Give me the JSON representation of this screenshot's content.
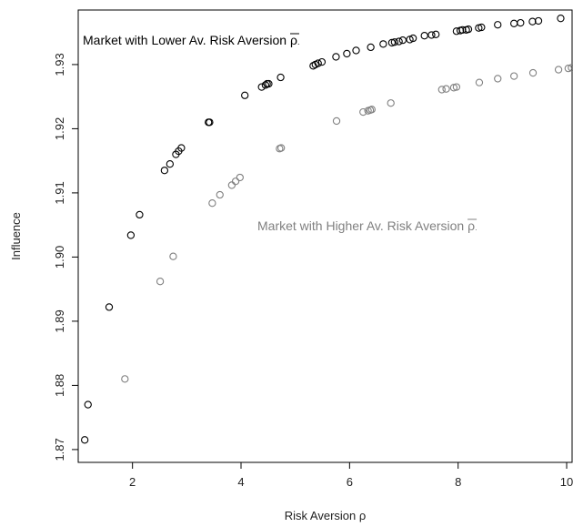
{
  "chart_data": {
    "type": "scatter",
    "xlabel": "Risk Aversion ρ",
    "ylabel": "Influence",
    "xlim": [
      1.0,
      10.1
    ],
    "ylim": [
      1.868,
      1.9385
    ],
    "x_ticks": [
      2,
      4,
      6,
      8,
      10
    ],
    "y_ticks": [
      1.87,
      1.88,
      1.89,
      1.9,
      1.91,
      1.92,
      1.93
    ],
    "y_tick_labels": [
      "1.87",
      "1.88",
      "1.89",
      "1.90",
      "1.91",
      "1.92",
      "1.93"
    ],
    "grid": false,
    "legend": "none",
    "annotations": [
      {
        "text": "Market with Lower Av. Risk Aversion",
        "symbol": "ρ",
        "color": "#000000"
      },
      {
        "text": "Market with Higher Av. Risk Aversion",
        "symbol": "ρ",
        "color": "#808080"
      }
    ],
    "series": [
      {
        "color": "#000000",
        "x": [
          1.12,
          1.18,
          1.57,
          1.97,
          2.13,
          2.59,
          2.69,
          2.8,
          2.85,
          2.9,
          3.4,
          3.42,
          4.07,
          4.38,
          4.45,
          4.48,
          4.51,
          4.73,
          5.33,
          5.37,
          5.42,
          5.49,
          5.75,
          5.95,
          6.12,
          6.39,
          6.62,
          6.78,
          6.83,
          6.91,
          6.98,
          7.11,
          7.17,
          7.38,
          7.51,
          7.59,
          7.97,
          8.04,
          8.08,
          8.15,
          8.19,
          8.38,
          8.43,
          8.73,
          9.03,
          9.15,
          9.37,
          9.48,
          9.89
        ],
        "y": [
          1.8715,
          1.877,
          1.8922,
          1.9034,
          1.9066,
          1.9135,
          1.9145,
          1.916,
          1.9165,
          1.917,
          1.921,
          1.921,
          1.9252,
          1.9265,
          1.9268,
          1.927,
          1.927,
          1.928,
          1.9298,
          1.93,
          1.9302,
          1.9304,
          1.9312,
          1.9317,
          1.9322,
          1.9327,
          1.9332,
          1.9334,
          1.9335,
          1.9336,
          1.9338,
          1.9339,
          1.9341,
          1.9345,
          1.9346,
          1.9347,
          1.9352,
          1.9353,
          1.9354,
          1.9354,
          1.9355,
          1.9357,
          1.9358,
          1.9362,
          1.9364,
          1.9365,
          1.9367,
          1.9368,
          1.9372
        ]
      },
      {
        "color": "#808080",
        "x": [
          1.86,
          2.51,
          2.75,
          3.47,
          3.61,
          3.83,
          3.9,
          3.98,
          4.71,
          4.74,
          5.76,
          6.25,
          6.34,
          6.38,
          6.41,
          6.76,
          7.7,
          7.78,
          7.92,
          7.97,
          8.39,
          8.73,
          9.03,
          9.38,
          9.85,
          10.03,
          10.09
        ],
        "y": [
          1.881,
          1.8962,
          1.9001,
          1.9084,
          1.9097,
          1.9112,
          1.9118,
          1.9124,
          1.9169,
          1.917,
          1.9212,
          1.9226,
          1.9228,
          1.9229,
          1.923,
          1.924,
          1.9261,
          1.9262,
          1.9264,
          1.9265,
          1.9272,
          1.9278,
          1.9282,
          1.9287,
          1.9292,
          1.9294,
          1.9295
        ]
      }
    ]
  }
}
